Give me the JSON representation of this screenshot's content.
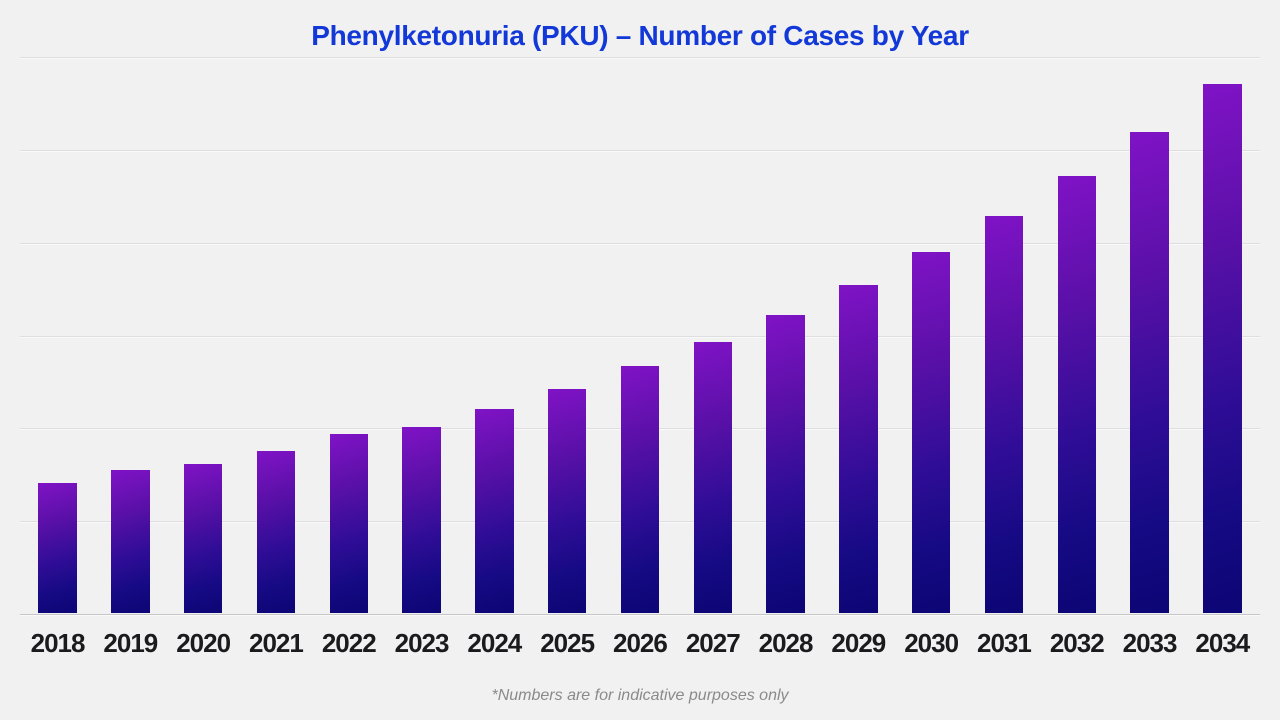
{
  "chart": {
    "title": "Phenylketonuria (PKU) – Number of Cases by Year",
    "footnote": "*Numbers are for indicative purposes only",
    "title_color": "#1238d8",
    "background_color": "#f1f1f2"
  },
  "chart_data": {
    "type": "bar",
    "title": "Phenylketonuria (PKU) – Number of Cases by Year",
    "categories": [
      "2018",
      "2019",
      "2020",
      "2021",
      "2022",
      "2023",
      "2024",
      "2025",
      "2026",
      "2027",
      "2028",
      "2029",
      "2030",
      "2031",
      "2032",
      "2033",
      "2034"
    ],
    "values": [
      1400,
      1540,
      1600,
      1740,
      1930,
      2000,
      2200,
      2410,
      2660,
      2920,
      3210,
      3530,
      3890,
      4280,
      4710,
      5180,
      5700
    ],
    "xlabel": "",
    "ylabel": "",
    "ylim": [
      0,
      6000
    ],
    "gridline_step": 1000,
    "grid": "horizontal-only",
    "y_tick_labels_visible": false,
    "legend": "none",
    "bar_gradient_top": "#8013c6",
    "bar_gradient_bottom": "#0c0574",
    "annotation": "*Numbers are for indicative purposes only"
  }
}
